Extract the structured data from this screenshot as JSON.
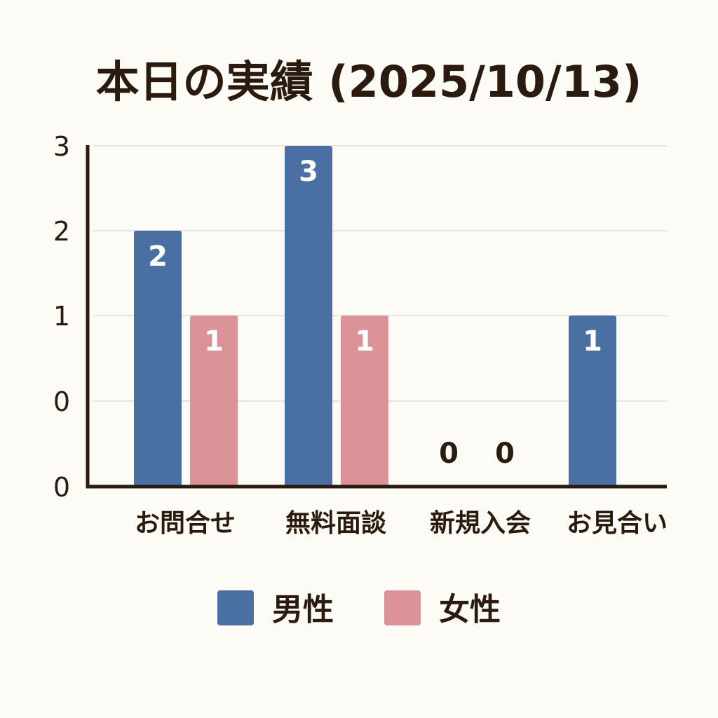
{
  "chart_data": {
    "type": "bar",
    "title": "本日の実績 (2025/10/13)",
    "categories": [
      "お問合せ",
      "無料面談",
      "新規入会",
      "お見合い"
    ],
    "series": [
      {
        "name": "男性",
        "color": "#4a70a3",
        "values": [
          2,
          3,
          0,
          1
        ],
        "labels": [
          "2",
          "3",
          "0",
          "1"
        ]
      },
      {
        "name": "女性",
        "color": "#db9398",
        "values": [
          1,
          1,
          0,
          null
        ],
        "labels": [
          "1",
          "1",
          "0",
          ""
        ]
      }
    ],
    "y_tick_labels": [
      "0",
      "0",
      "1",
      "2",
      "3"
    ],
    "grid": true,
    "legend": "bottom"
  }
}
